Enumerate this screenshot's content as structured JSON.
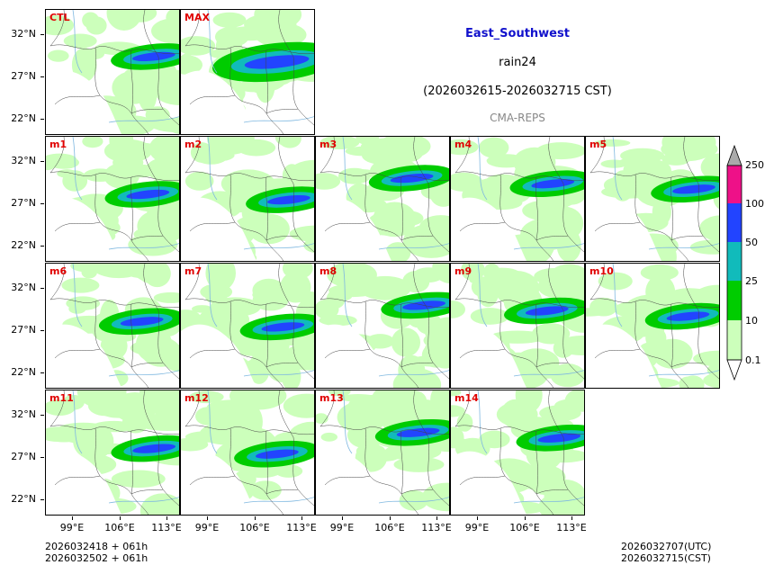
{
  "header": {
    "region": "East_Southwest",
    "variable": "rain24",
    "period": "(2026032615-2026032715 CST)",
    "system": "CMA-REPS"
  },
  "panels": [
    {
      "label": "CTL"
    },
    {
      "label": "MAX"
    },
    {
      "label": "m1"
    },
    {
      "label": "m2"
    },
    {
      "label": "m3"
    },
    {
      "label": "m4"
    },
    {
      "label": "m5"
    },
    {
      "label": "m6"
    },
    {
      "label": "m7"
    },
    {
      "label": "m8"
    },
    {
      "label": "m9"
    },
    {
      "label": "m10"
    },
    {
      "label": "m11"
    },
    {
      "label": "m12"
    },
    {
      "label": "m13"
    },
    {
      "label": "m14"
    }
  ],
  "axes": {
    "lat_labels": [
      "32°N",
      "27°N",
      "22°N"
    ],
    "lon_labels": [
      "99°E",
      "106°E",
      "113°E"
    ]
  },
  "colorbar": {
    "labels": [
      "250",
      "100",
      "50",
      "25",
      "10",
      "0.1"
    ],
    "colors": [
      "#aaaaaa",
      "#ee1188",
      "#2244ff",
      "#11bbbb",
      "#00cc00",
      "#ccffbb"
    ]
  },
  "footer": {
    "init_line1": "2026032418  +  061h",
    "init_line2": "2026032502  +  061h",
    "valid_line1": "2026032707(UTC)",
    "valid_line2": "2026032715(CST)"
  }
}
